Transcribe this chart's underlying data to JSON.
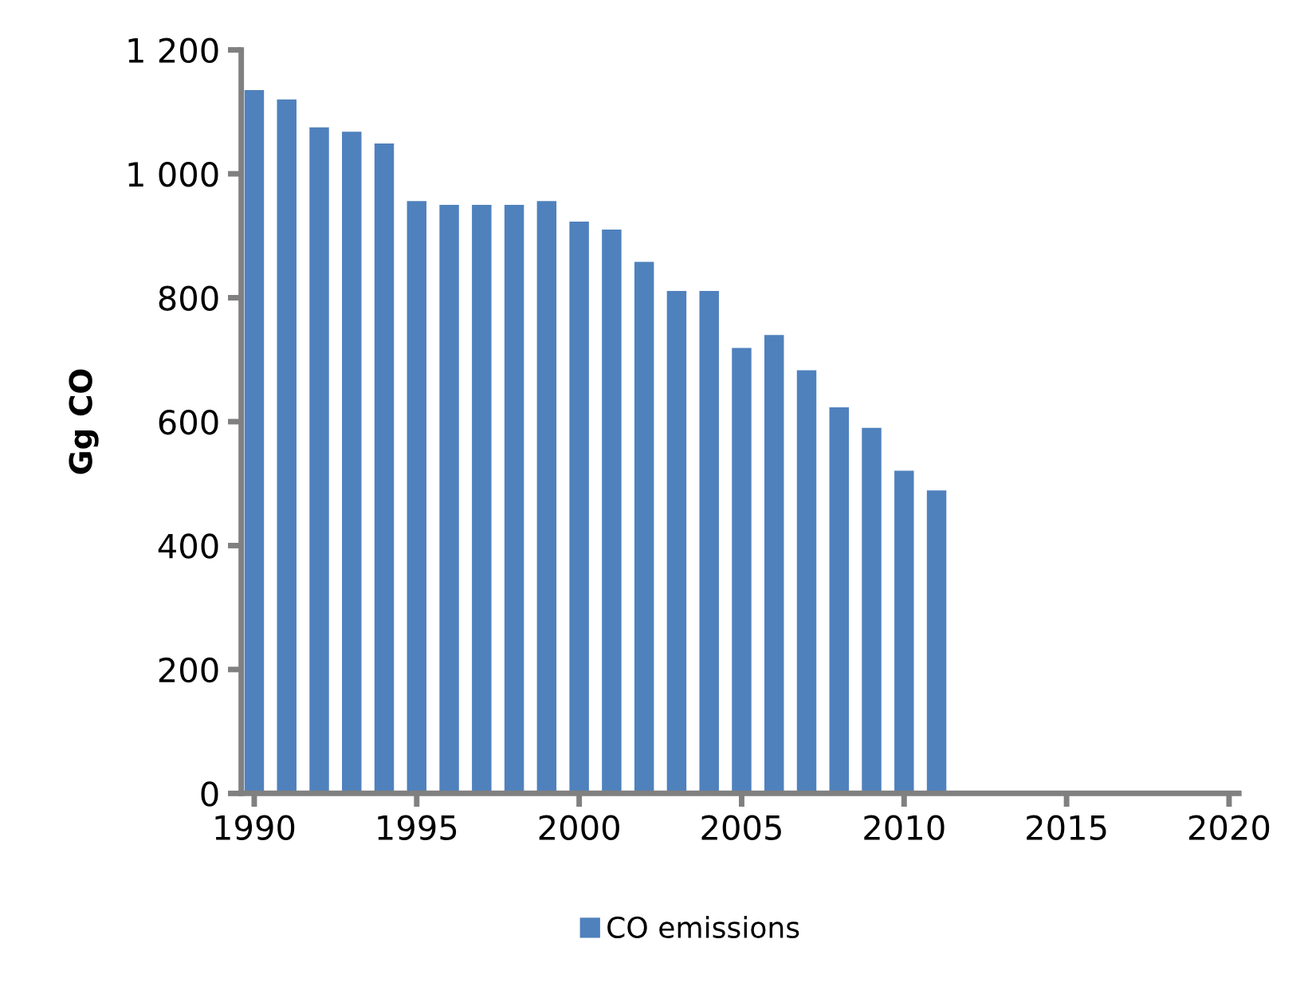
{
  "chart_data": {
    "type": "bar",
    "ylabel": "Gg CO",
    "x": [
      1990,
      1991,
      1992,
      1993,
      1994,
      1995,
      1996,
      1997,
      1998,
      1999,
      2000,
      2001,
      2002,
      2003,
      2004,
      2005,
      2006,
      2007,
      2008,
      2009,
      2010,
      2011
    ],
    "series": [
      {
        "name": "CO emissions",
        "color": "#4f81bd",
        "values": [
          1135,
          1120,
          1075,
          1068,
          1049,
          956,
          950,
          950,
          950,
          956,
          923,
          910,
          858,
          811,
          811,
          719,
          740,
          683,
          623,
          590,
          521,
          489
        ]
      }
    ],
    "xlim": [
      1989.6,
      2020.3
    ],
    "xticks": [
      1990,
      1995,
      2000,
      2005,
      2010,
      2015,
      2020
    ],
    "ylim": [
      0,
      1200
    ],
    "yticks": [
      0,
      {
        "value": 200,
        "label": "200"
      },
      {
        "value": 400,
        "label": "400"
      },
      {
        "value": 600,
        "label": "600"
      },
      {
        "value": 800,
        "label": "800"
      },
      {
        "value": 1000,
        "label": "1 000"
      },
      {
        "value": 1200,
        "label": "1 200"
      }
    ],
    "grid": false,
    "legend": "bottom"
  }
}
